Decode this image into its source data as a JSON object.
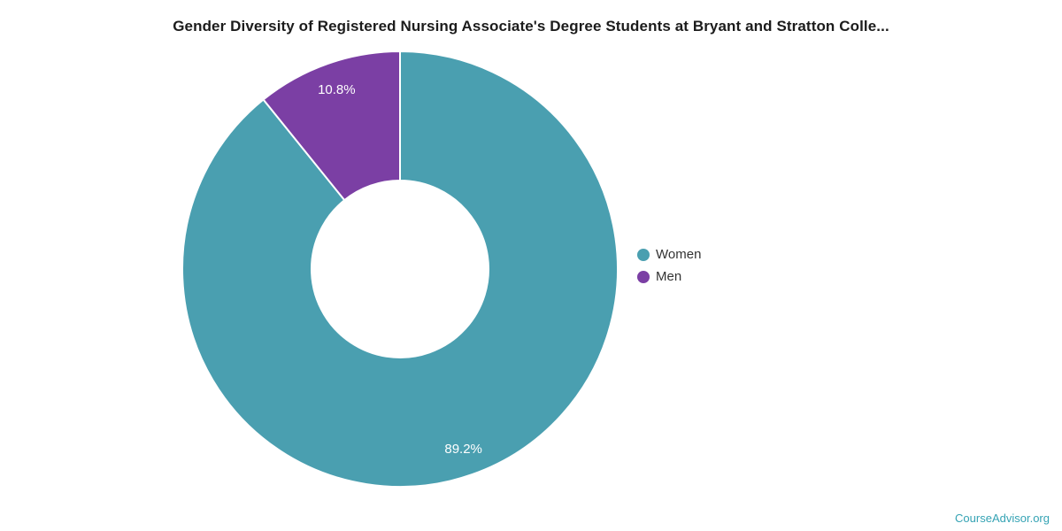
{
  "page": {
    "title": "Gender Diversity of Registered Nursing Associate's Degree Students at Bryant and Stratton Colle...",
    "source_link": "CourseAdvisor.org"
  },
  "chart_data": {
    "type": "pie",
    "subtype": "donut",
    "title": "Gender Diversity of Registered Nursing Associate's Degree Students at Bryant and Stratton Colle...",
    "slices": [
      {
        "label": "Women",
        "value": 89.2,
        "display": "89.2%",
        "color": "#4a9fb0"
      },
      {
        "label": "Men",
        "value": 10.8,
        "display": "10.8%",
        "color": "#7b3fa4"
      }
    ],
    "start_angle_deg": 0,
    "direction": "clockwise",
    "inner_radius_ratio": 0.405,
    "slice_border_color": "#ffffff",
    "data_label_color": "#ffffff",
    "legend_position": "right",
    "legend": [
      {
        "label": "Women"
      },
      {
        "label": "Men"
      }
    ]
  }
}
